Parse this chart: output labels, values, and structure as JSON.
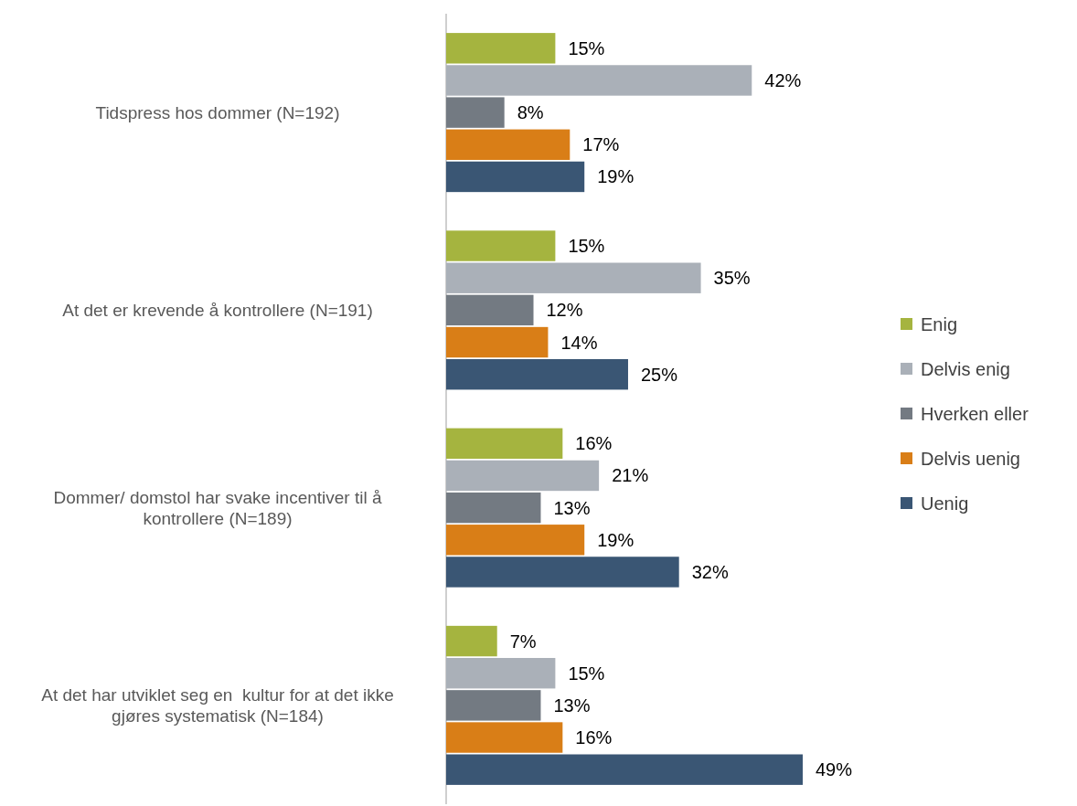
{
  "chart_data": {
    "type": "bar",
    "orientation": "horizontal",
    "categories": [
      "Tidspress hos dommer (N=192)",
      "At det er krevende å kontrollere (N=191)",
      "Dommer/ domstol har svake incentiver til å kontrollere (N=189)",
      "At det har utviklet seg en  kultur for at det ikke gjøres systematisk (N=184)"
    ],
    "series": [
      {
        "name": "Enig",
        "color": "#a5b43f",
        "values": [
          15,
          15,
          16,
          7
        ],
        "value_labels": [
          "15%",
          "15%",
          "16%",
          "7%"
        ]
      },
      {
        "name": "Delvis enig",
        "color": "#aab0b8",
        "values": [
          42,
          35,
          21,
          15
        ],
        "value_labels": [
          "42%",
          "35%",
          "21%",
          "15%"
        ]
      },
      {
        "name": "Hverken eller",
        "color": "#737a82",
        "values": [
          8,
          12,
          13,
          13
        ],
        "value_labels": [
          "8%",
          "12%",
          "13%",
          "13%"
        ]
      },
      {
        "name": "Delvis uenig",
        "color": "#d97e17",
        "values": [
          17,
          14,
          19,
          16
        ],
        "value_labels": [
          "17%",
          "14%",
          "19%",
          "16%"
        ]
      },
      {
        "name": "Uenig",
        "color": "#3a5674",
        "values": [
          19,
          25,
          32,
          49
        ],
        "value_labels": [
          "19%",
          "25%",
          "32%",
          "49%"
        ]
      }
    ],
    "legend": "right"
  }
}
